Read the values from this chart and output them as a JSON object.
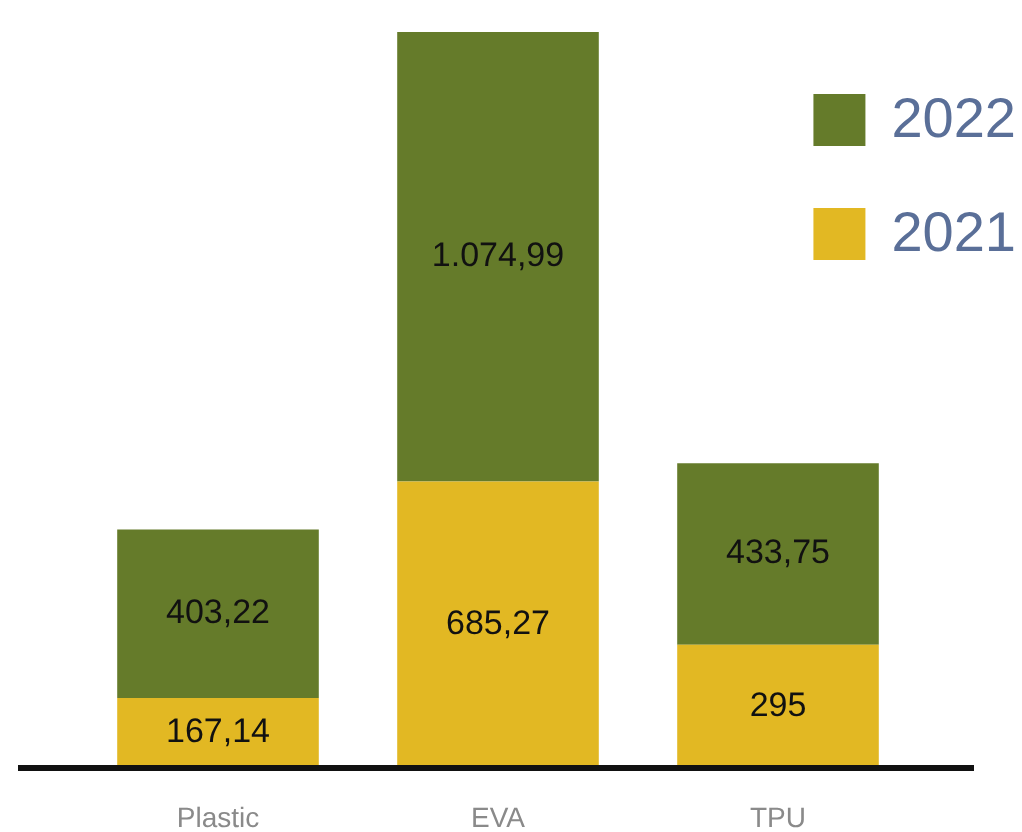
{
  "chart_data": {
    "type": "bar",
    "stacked": true,
    "categories": [
      "Plastic",
      "EVA",
      "TPU"
    ],
    "series": [
      {
        "name": "2021",
        "color": "#e2b823",
        "values": [
          167.14,
          685.27,
          295
        ],
        "value_labels": [
          "167,14",
          "685,27",
          "295"
        ]
      },
      {
        "name": "2022",
        "color": "#657b2a",
        "values": [
          403.22,
          1074.99,
          433.75
        ],
        "value_labels": [
          "403,22",
          "1.074,99",
          "433,75"
        ]
      }
    ],
    "legend": "top right",
    "grid": false,
    "tick_labels": "x"
  }
}
